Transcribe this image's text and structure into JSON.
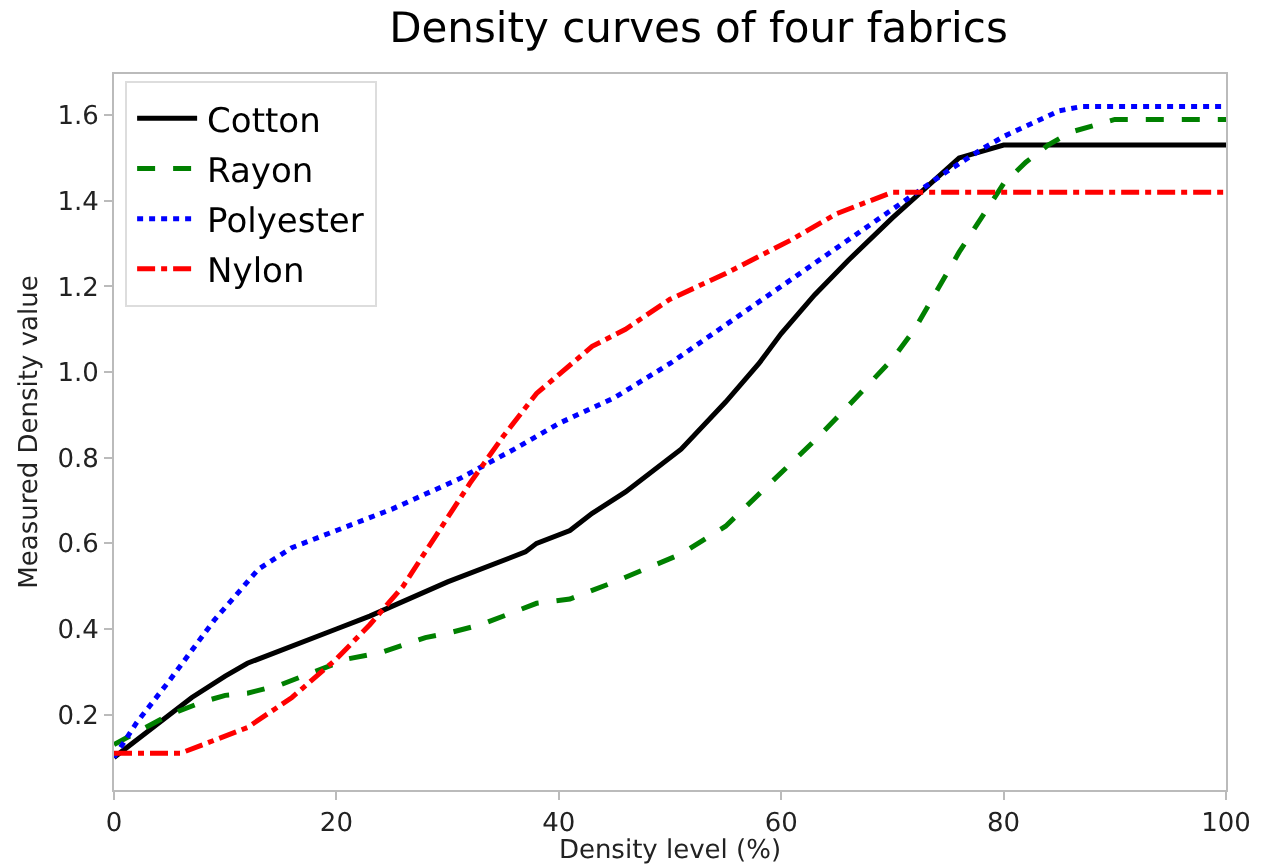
{
  "chart_data": {
    "type": "line",
    "title": "Density curves of four fabrics",
    "xlabel": "Density level (%)",
    "ylabel": "Measured Density value",
    "xlim": [
      0,
      100
    ],
    "xticks": [
      0,
      20,
      40,
      60,
      80,
      100
    ],
    "ylim": [
      0.024,
      1.696
    ],
    "yticks": [
      0.2,
      0.4,
      0.6,
      0.8,
      {
        "value": 1,
        "label": "1.0"
      },
      1.2,
      1.4,
      1.6
    ],
    "grid": false,
    "legend": "top left",
    "series": [
      {
        "name": "Cotton",
        "color": "#000000",
        "line_style": "solid",
        "x": [
          0,
          7,
          10,
          12,
          20,
          23,
          30,
          37,
          38,
          41,
          43,
          46,
          51,
          55,
          58,
          60,
          63,
          66,
          70,
          73,
          76,
          80,
          100
        ],
        "values": [
          0.1,
          0.24,
          0.29,
          0.32,
          0.4,
          0.43,
          0.51,
          0.58,
          0.6,
          0.63,
          0.67,
          0.72,
          0.82,
          0.93,
          1.02,
          1.09,
          1.18,
          1.26,
          1.36,
          1.43,
          1.5,
          1.53,
          1.53
        ]
      },
      {
        "name": "Rayon",
        "color": "#008000",
        "line_style": "dashed",
        "x": [
          0,
          5,
          8,
          10,
          12,
          15,
          18,
          21,
          24,
          28,
          30,
          33,
          38,
          41,
          45,
          51,
          55,
          61,
          63,
          66,
          70,
          72,
          76,
          78,
          80,
          82,
          84,
          86,
          90,
          100
        ],
        "values": [
          0.13,
          0.2,
          0.23,
          0.245,
          0.25,
          0.27,
          0.3,
          0.33,
          0.345,
          0.38,
          0.39,
          0.41,
          0.46,
          0.47,
          0.51,
          0.575,
          0.64,
          0.79,
          0.84,
          0.92,
          1.03,
          1.1,
          1.28,
          1.36,
          1.44,
          1.49,
          1.53,
          1.56,
          1.59,
          1.59
        ]
      },
      {
        "name": "Polyester",
        "color": "#0000ff",
        "line_style": "dotted",
        "x": [
          0,
          2,
          5,
          9,
          13,
          16,
          20,
          25,
          31,
          36,
          40,
          45,
          50,
          55,
          60,
          65,
          70,
          75,
          78,
          80,
          85,
          87,
          100
        ],
        "values": [
          0.1,
          0.18,
          0.28,
          0.42,
          0.54,
          0.59,
          0.63,
          0.68,
          0.75,
          0.82,
          0.88,
          0.94,
          1.02,
          1.11,
          1.2,
          1.29,
          1.38,
          1.47,
          1.52,
          1.55,
          1.61,
          1.62,
          1.62
        ]
      },
      {
        "name": "Nylon",
        "color": "#ff0000",
        "line_style": "dashdot",
        "x": [
          0,
          6,
          9,
          12,
          16,
          20,
          23,
          26,
          29,
          32,
          35,
          38,
          43,
          46,
          50,
          55,
          61,
          65,
          70,
          100
        ],
        "values": [
          0.11,
          0.11,
          0.14,
          0.17,
          0.24,
          0.33,
          0.41,
          0.5,
          0.62,
          0.74,
          0.85,
          0.95,
          1.06,
          1.1,
          1.17,
          1.23,
          1.31,
          1.37,
          1.42,
          1.42
        ]
      }
    ]
  }
}
